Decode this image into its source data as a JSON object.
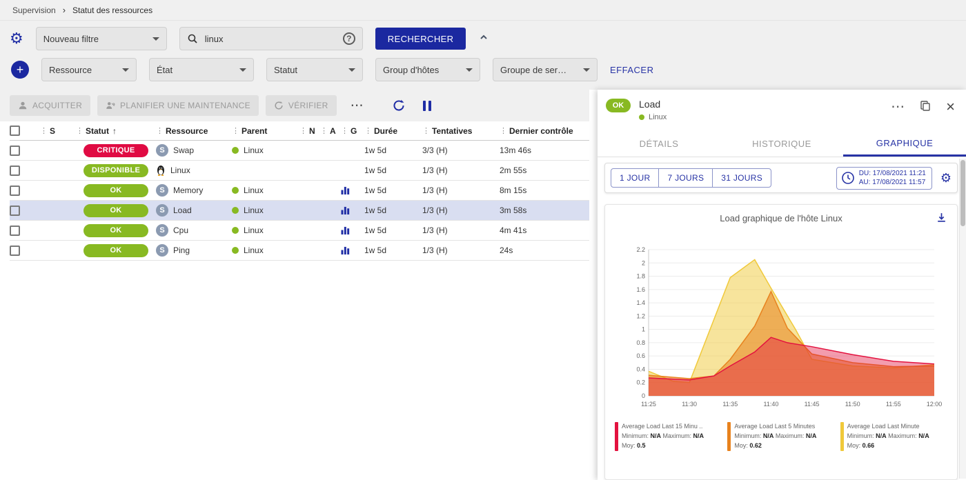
{
  "colors": {
    "accent": "#2733a5",
    "button_blue": "#1b28a0",
    "critical_red": "#e00b43",
    "success_green": "#88b922",
    "selected_row": "#d9def1"
  },
  "breadcrumb": {
    "items": [
      "Supervision",
      "Statut des ressources"
    ]
  },
  "filters": {
    "saved_filter": "Nouveau filtre",
    "search_value": "linux",
    "search_button": "RECHERCHER",
    "clear_button": "EFFACER",
    "criteria": [
      {
        "label": "Ressource"
      },
      {
        "label": "État"
      },
      {
        "label": "Statut"
      },
      {
        "label": "Group d'hôtes"
      },
      {
        "label": "Groupe de ser…"
      }
    ]
  },
  "toolbar": {
    "acknowledge": "ACQUITTER",
    "maintenance": "PLANIFIER UNE MAINTENANCE",
    "check": "VÉRIFIER"
  },
  "table": {
    "headers": [
      "S",
      "Statut",
      "Ressource",
      "Parent",
      "N",
      "A",
      "G",
      "Durée",
      "Tentatives",
      "Dernier contrôle"
    ],
    "rows": [
      {
        "status": "CRITIQUE",
        "status_color": "#e00b43",
        "type": "S",
        "resource": "Swap",
        "parent": "Linux",
        "has_graph": false,
        "duration": "1w 5d",
        "tries": "3/3 (H)",
        "last_check": "13m 46s",
        "selected": false
      },
      {
        "status": "DISPONIBLE",
        "status_color": "#88b922",
        "type": "host",
        "resource": "Linux",
        "parent": "",
        "has_graph": false,
        "duration": "1w 5d",
        "tries": "1/3 (H)",
        "last_check": "2m 55s",
        "selected": false
      },
      {
        "status": "OK",
        "status_color": "#88b922",
        "type": "S",
        "resource": "Memory",
        "parent": "Linux",
        "has_graph": true,
        "duration": "1w 5d",
        "tries": "1/3 (H)",
        "last_check": "8m 15s",
        "selected": false
      },
      {
        "status": "OK",
        "status_color": "#88b922",
        "type": "S",
        "resource": "Load",
        "parent": "Linux",
        "has_graph": true,
        "duration": "1w 5d",
        "tries": "1/3 (H)",
        "last_check": "3m 58s",
        "selected": true
      },
      {
        "status": "OK",
        "status_color": "#88b922",
        "type": "S",
        "resource": "Cpu",
        "parent": "Linux",
        "has_graph": true,
        "duration": "1w 5d",
        "tries": "1/3 (H)",
        "last_check": "4m 41s",
        "selected": false
      },
      {
        "status": "OK",
        "status_color": "#88b922",
        "type": "S",
        "resource": "Ping",
        "parent": "Linux",
        "has_graph": true,
        "duration": "1w 5d",
        "tries": "1/3 (H)",
        "last_check": "24s",
        "selected": false
      }
    ]
  },
  "panel": {
    "status": "OK",
    "title": "Load",
    "subtitle": "Linux",
    "tabs": [
      {
        "label": "DÉTAILS",
        "active": false
      },
      {
        "label": "HISTORIQUE",
        "active": false
      },
      {
        "label": "GRAPHIQUE",
        "active": true
      }
    ],
    "time_ranges": [
      "1 JOUR",
      "7 JOURS",
      "31 JOURS"
    ],
    "date_from": "DU: 17/08/2021 11:21",
    "date_to": "AU: 17/08/2021 11:57"
  },
  "chart_data": {
    "type": "area",
    "title": "Load graphique de l'hôte Linux",
    "xlabel": "",
    "ylabel": "",
    "ylim": [
      0,
      2.2
    ],
    "ytick_step": 0.2,
    "grid": true,
    "legend_position": "bottom",
    "x": [
      "11:25",
      "11:30",
      "11:35",
      "11:40",
      "11:45",
      "11:50",
      "11:55",
      "12:00"
    ],
    "legend_labels": {
      "min": "Minimum:",
      "max": "Maximum:",
      "avg": "Moy:"
    },
    "series": [
      {
        "name": "Average Load Last 15 Minu ..",
        "color": "#e3123f",
        "min": "N/A",
        "max": "N/A",
        "avg": "0.5",
        "points": [
          [
            0,
            0.27
          ],
          [
            5,
            0.24
          ],
          [
            8,
            0.3
          ],
          [
            10,
            0.45
          ],
          [
            13,
            0.66
          ],
          [
            15,
            0.88
          ],
          [
            17,
            0.8
          ],
          [
            20,
            0.74
          ],
          [
            25,
            0.62
          ],
          [
            30,
            0.52
          ],
          [
            35,
            0.48
          ]
        ]
      },
      {
        "name": "Average Load Last 5 Minutes",
        "color": "#e8821e",
        "min": "N/A",
        "max": "N/A",
        "avg": "0.62",
        "points": [
          [
            0,
            0.31
          ],
          [
            5,
            0.26
          ],
          [
            8,
            0.3
          ],
          [
            10,
            0.55
          ],
          [
            13,
            1.05
          ],
          [
            15,
            1.57
          ],
          [
            17,
            1.02
          ],
          [
            20,
            0.63
          ],
          [
            25,
            0.5
          ],
          [
            30,
            0.44
          ],
          [
            35,
            0.45
          ]
        ]
      },
      {
        "name": "Average Load Last Minute",
        "color": "#f0c93a",
        "min": "N/A",
        "max": "N/A",
        "avg": "0.66",
        "points": [
          [
            0,
            0.37
          ],
          [
            3,
            0.22
          ],
          [
            5,
            0.2
          ],
          [
            10,
            1.78
          ],
          [
            13,
            2.05
          ],
          [
            15,
            1.62
          ],
          [
            18,
            1.0
          ],
          [
            20,
            0.55
          ],
          [
            25,
            0.45
          ],
          [
            30,
            0.42
          ],
          [
            35,
            0.47
          ]
        ]
      }
    ]
  }
}
